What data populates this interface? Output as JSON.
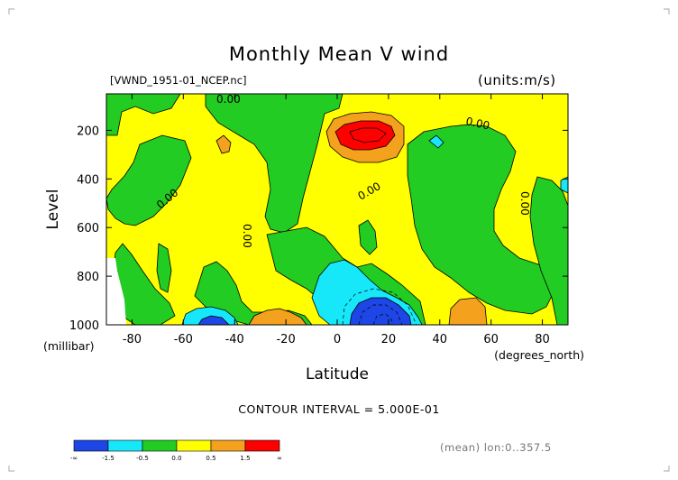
{
  "title": "Monthly Mean V wind",
  "file_label": "[VWND_1951-01_NCEP.nc]",
  "units": "(units:m/s)",
  "contour_interval": "CONTOUR INTERVAL = 5.000E-01",
  "mean_label": "(mean) lon:0..357.5",
  "contour_labels": [
    "0.00",
    "0.00",
    "0.00",
    "0.00",
    "0.00",
    "0.00"
  ],
  "colors": {
    "blue": "#1e46e6",
    "cyan": "#16e8fa",
    "green": "#22cc22",
    "yellow": "#ffff00",
    "orange": "#f4a11e",
    "red": "#ff0000"
  },
  "chart_data": {
    "type": "contour",
    "title": "Monthly Mean V wind",
    "xlabel": "Latitude",
    "xlabel_units": "(degrees_north)",
    "ylabel": "Level",
    "ylabel_units": "(millibar)",
    "xlim": [
      -90,
      90
    ],
    "ylim": [
      1000,
      50
    ],
    "x_ticks": [
      -80,
      -60,
      -40,
      -20,
      0,
      20,
      40,
      60,
      80
    ],
    "y_ticks": [
      200,
      400,
      600,
      800,
      1000
    ],
    "contour_interval": 0.5,
    "colorbar": {
      "labels": [
        "-∞",
        "-1.5",
        "-0.5",
        "0.0",
        "0.5",
        "1.5",
        "∞"
      ],
      "colors": [
        "#1e46e6",
        "#16e8fa",
        "#22cc22",
        "#ffff00",
        "#f4a11e",
        "#ff0000"
      ]
    }
  }
}
